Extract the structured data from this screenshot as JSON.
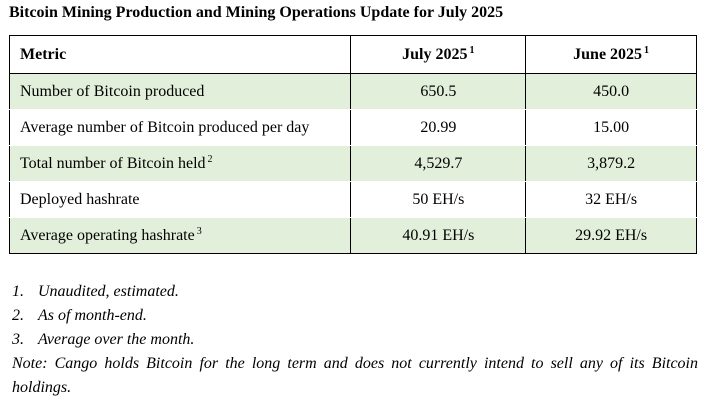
{
  "title": "Bitcoin Mining Production and Mining Operations Update for July 2025",
  "table": {
    "headers": {
      "metric": "Metric",
      "col1": "July 2025",
      "col1_sup": "1",
      "col2": "June 2025",
      "col2_sup": "1"
    },
    "rows": [
      {
        "metric": "Number of Bitcoin produced",
        "sup": "",
        "july": "650.5",
        "june": "450.0"
      },
      {
        "metric": "Average number of Bitcoin produced per day",
        "sup": "",
        "july": "20.99",
        "june": "15.00"
      },
      {
        "metric": "Total number of Bitcoin held",
        "sup": "2",
        "july": "4,529.7",
        "june": "3,879.2"
      },
      {
        "metric": "Deployed hashrate",
        "sup": "",
        "july": "50 EH/s",
        "june": "32 EH/s"
      },
      {
        "metric": "Average operating hashrate",
        "sup": "3",
        "july": "40.91 EH/s",
        "june": "29.92 EH/s"
      }
    ]
  },
  "footnotes": [
    {
      "num": "1.",
      "text": "Unaudited, estimated."
    },
    {
      "num": "2.",
      "text": "As of month-end."
    },
    {
      "num": "3.",
      "text": "Average over the month."
    }
  ],
  "note": "Note: Cango holds Bitcoin for the long term and does not currently intend to sell any of its Bitcoin holdings.",
  "colors": {
    "shaded_row": "#e2efda",
    "border": "#000000"
  }
}
